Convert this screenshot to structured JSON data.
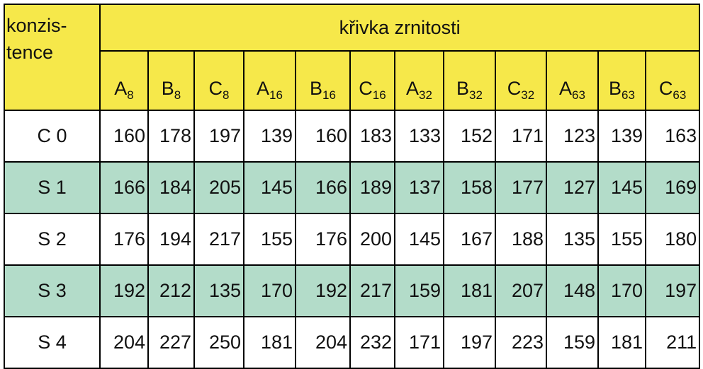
{
  "table": {
    "corner": [
      "konzis-",
      "tence"
    ],
    "group_header": "křivka zrnitosti",
    "columns": [
      {
        "letter": "A",
        "sub": "8"
      },
      {
        "letter": "B",
        "sub": "8"
      },
      {
        "letter": "C",
        "sub": "8"
      },
      {
        "letter": "A",
        "sub": "16"
      },
      {
        "letter": "B",
        "sub": "16"
      },
      {
        "letter": "C",
        "sub": "16"
      },
      {
        "letter": "A",
        "sub": "32"
      },
      {
        "letter": "B",
        "sub": "32"
      },
      {
        "letter": "C",
        "sub": "32"
      },
      {
        "letter": "A",
        "sub": "63"
      },
      {
        "letter": "B",
        "sub": "63"
      },
      {
        "letter": "C",
        "sub": "63"
      }
    ],
    "rows": [
      {
        "label": "C 0",
        "values": [
          160,
          178,
          197,
          139,
          160,
          183,
          133,
          152,
          171,
          123,
          139,
          163
        ]
      },
      {
        "label": "S 1",
        "values": [
          166,
          184,
          205,
          145,
          166,
          189,
          137,
          158,
          177,
          127,
          145,
          169
        ]
      },
      {
        "label": "S 2",
        "values": [
          176,
          194,
          217,
          155,
          176,
          200,
          145,
          167,
          188,
          135,
          155,
          180
        ]
      },
      {
        "label": "S 3",
        "values": [
          192,
          212,
          135,
          170,
          192,
          217,
          159,
          181,
          207,
          148,
          170,
          197
        ]
      },
      {
        "label": "S 4",
        "values": [
          204,
          227,
          250,
          181,
          204,
          232,
          171,
          197,
          223,
          159,
          181,
          211
        ]
      }
    ]
  }
}
